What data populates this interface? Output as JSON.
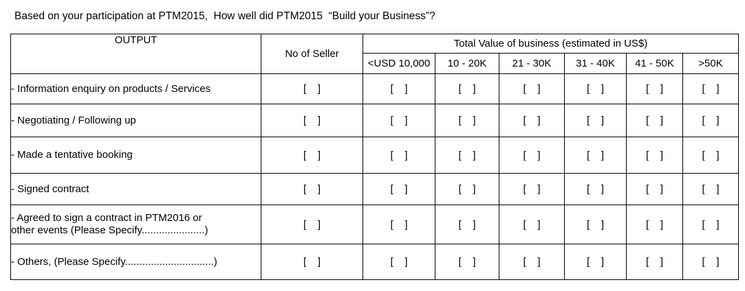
{
  "question": "Based on your participation at PTM2015,  How well did PTM2015  “Build your Business”?",
  "table": {
    "output_header": "OUTPUT",
    "seller_header": "No of Seller",
    "total_header": "Total Value of business (estimated in US$)",
    "ranges": [
      "<USD 10,000",
      "10 - 20K",
      "21 - 30K",
      "31 - 40K",
      "41 - 50K",
      ">50K"
    ],
    "rows": [
      {
        "label": " - Information enquiry on products / Services"
      },
      {
        "label": "- Negotiating / Following up"
      },
      {
        "label": " - Made a tentative booking"
      },
      {
        "label": " - Signed contract"
      },
      {
        "label": " - Agreed to sign a contract in PTM2016 or\nother  events (Please Specify......................)"
      },
      {
        "label": "- Others, (Please Specify...............................)"
      }
    ],
    "checkbox_text": "[    ]"
  }
}
